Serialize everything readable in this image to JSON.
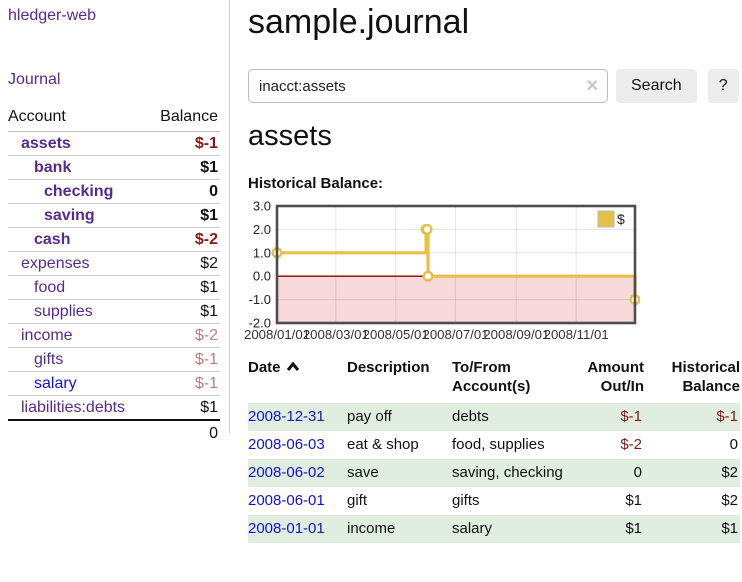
{
  "app": {
    "brand": "hledger-web"
  },
  "sidebar": {
    "journal_link": "Journal",
    "accounts_table": {
      "headers": {
        "account": "Account",
        "balance": "Balance"
      },
      "rows": [
        {
          "label": "assets",
          "balance": "$-1",
          "depth": 1,
          "bold": true,
          "neg": "strong",
          "link": "visited"
        },
        {
          "label": "bank",
          "balance": "$1",
          "depth": 2,
          "bold": true,
          "neg": "none",
          "link": "visited"
        },
        {
          "label": "checking",
          "balance": "0",
          "depth": 3,
          "bold": true,
          "neg": "none",
          "link": "visited"
        },
        {
          "label": "saving",
          "balance": "$1",
          "depth": 3,
          "bold": true,
          "neg": "none",
          "link": "visited"
        },
        {
          "label": "cash",
          "balance": "$-2",
          "depth": 2,
          "bold": true,
          "neg": "strong",
          "link": "visited"
        },
        {
          "label": "expenses",
          "balance": "$2",
          "depth": 1,
          "bold": false,
          "neg": "none",
          "link": "visited"
        },
        {
          "label": "food",
          "balance": "$1",
          "depth": 2,
          "bold": false,
          "neg": "none",
          "link": "visited"
        },
        {
          "label": "supplies",
          "balance": "$1",
          "depth": 2,
          "bold": false,
          "neg": "none",
          "link": "visited"
        },
        {
          "label": "income",
          "balance": "$-2",
          "depth": 1,
          "bold": false,
          "neg": "soft",
          "link": "visited"
        },
        {
          "label": "gifts",
          "balance": "$-1",
          "depth": 2,
          "bold": false,
          "neg": "soft",
          "link": "visited"
        },
        {
          "label": "salary",
          "balance": "$-1",
          "depth": 2,
          "bold": false,
          "neg": "soft",
          "link": "unvisited"
        },
        {
          "label": "liabilities:debts",
          "balance": "$1",
          "depth": 1,
          "bold": false,
          "neg": "none",
          "link": "visited"
        }
      ],
      "total": "0"
    }
  },
  "header": {
    "title": "sample.journal"
  },
  "search": {
    "value": "inacct:assets",
    "button_label": "Search",
    "help_label": "?"
  },
  "icons": {
    "clear": "✕"
  },
  "main": {
    "account_heading": "assets",
    "chart_label": "Historical Balance:"
  },
  "chart_data": {
    "type": "line",
    "title": "Historical Balance:",
    "x_range": [
      "2008-01-01",
      "2008-12-31"
    ],
    "y_range": [
      -2,
      3
    ],
    "y_ticks": [
      3.0,
      2.0,
      1.0,
      0.0,
      -1.0,
      -2.0
    ],
    "x_ticks": [
      {
        "label": "2008/01/01",
        "date": "2008-01-01"
      },
      {
        "label": "2008/03/01",
        "date": "2008-03-01"
      },
      {
        "label": "2008/05/01",
        "date": "2008-05-01"
      },
      {
        "label": "2008/07/01",
        "date": "2008-07-01"
      },
      {
        "label": "2008/09/01",
        "date": "2008-09-01"
      },
      {
        "label": "2008/11/01",
        "date": "2008-11-01"
      }
    ],
    "legend": [
      {
        "label": "$",
        "color": "#e7c04a"
      }
    ],
    "legend_position": "top-right",
    "grid": true,
    "step": "after",
    "series": [
      {
        "name": "$",
        "color": "#e7c04a",
        "points": [
          {
            "x": "2008-01-01",
            "y": 1
          },
          {
            "x": "2008-06-01",
            "y": 2
          },
          {
            "x": "2008-06-02",
            "y": 2
          },
          {
            "x": "2008-06-03",
            "y": 0
          },
          {
            "x": "2008-12-31",
            "y": -1
          }
        ]
      }
    ],
    "negative_region_fill": "#f8d9d9",
    "zero_line_color": "#8b0000"
  },
  "register": {
    "headers": {
      "date": "Date",
      "description": "Description",
      "accounts": "To/From\nAccount(s)",
      "amount": "Amount\nOut/In",
      "balance": "Historical\nBalance"
    },
    "rows": [
      {
        "date": "2008-12-31",
        "description": "pay off",
        "accounts": "debts",
        "amount": "$-1",
        "amount_neg": true,
        "balance": "$-1",
        "balance_neg": true
      },
      {
        "date": "2008-06-03",
        "description": "eat & shop",
        "accounts": "food, supplies",
        "amount": "$-2",
        "amount_neg": true,
        "balance": "0",
        "balance_neg": false
      },
      {
        "date": "2008-06-02",
        "description": "save",
        "accounts": "saving, checking",
        "amount": "0",
        "amount_neg": false,
        "balance": "$2",
        "balance_neg": false
      },
      {
        "date": "2008-06-01",
        "description": "gift",
        "accounts": "gifts",
        "amount": "$1",
        "amount_neg": false,
        "balance": "$2",
        "balance_neg": false
      },
      {
        "date": "2008-01-01",
        "description": "income",
        "accounts": "salary",
        "amount": "$1",
        "amount_neg": false,
        "balance": "$1",
        "balance_neg": false
      }
    ]
  },
  "colors": {
    "purple": "#552a93",
    "blue": "#1212d6",
    "neg-strong": "#8b1616",
    "neg-soft": "#c27d7d",
    "stripe": "#dfeedf",
    "gold": "#e7c04a",
    "pink": "#f8d9d9",
    "zero": "#8b0000"
  }
}
